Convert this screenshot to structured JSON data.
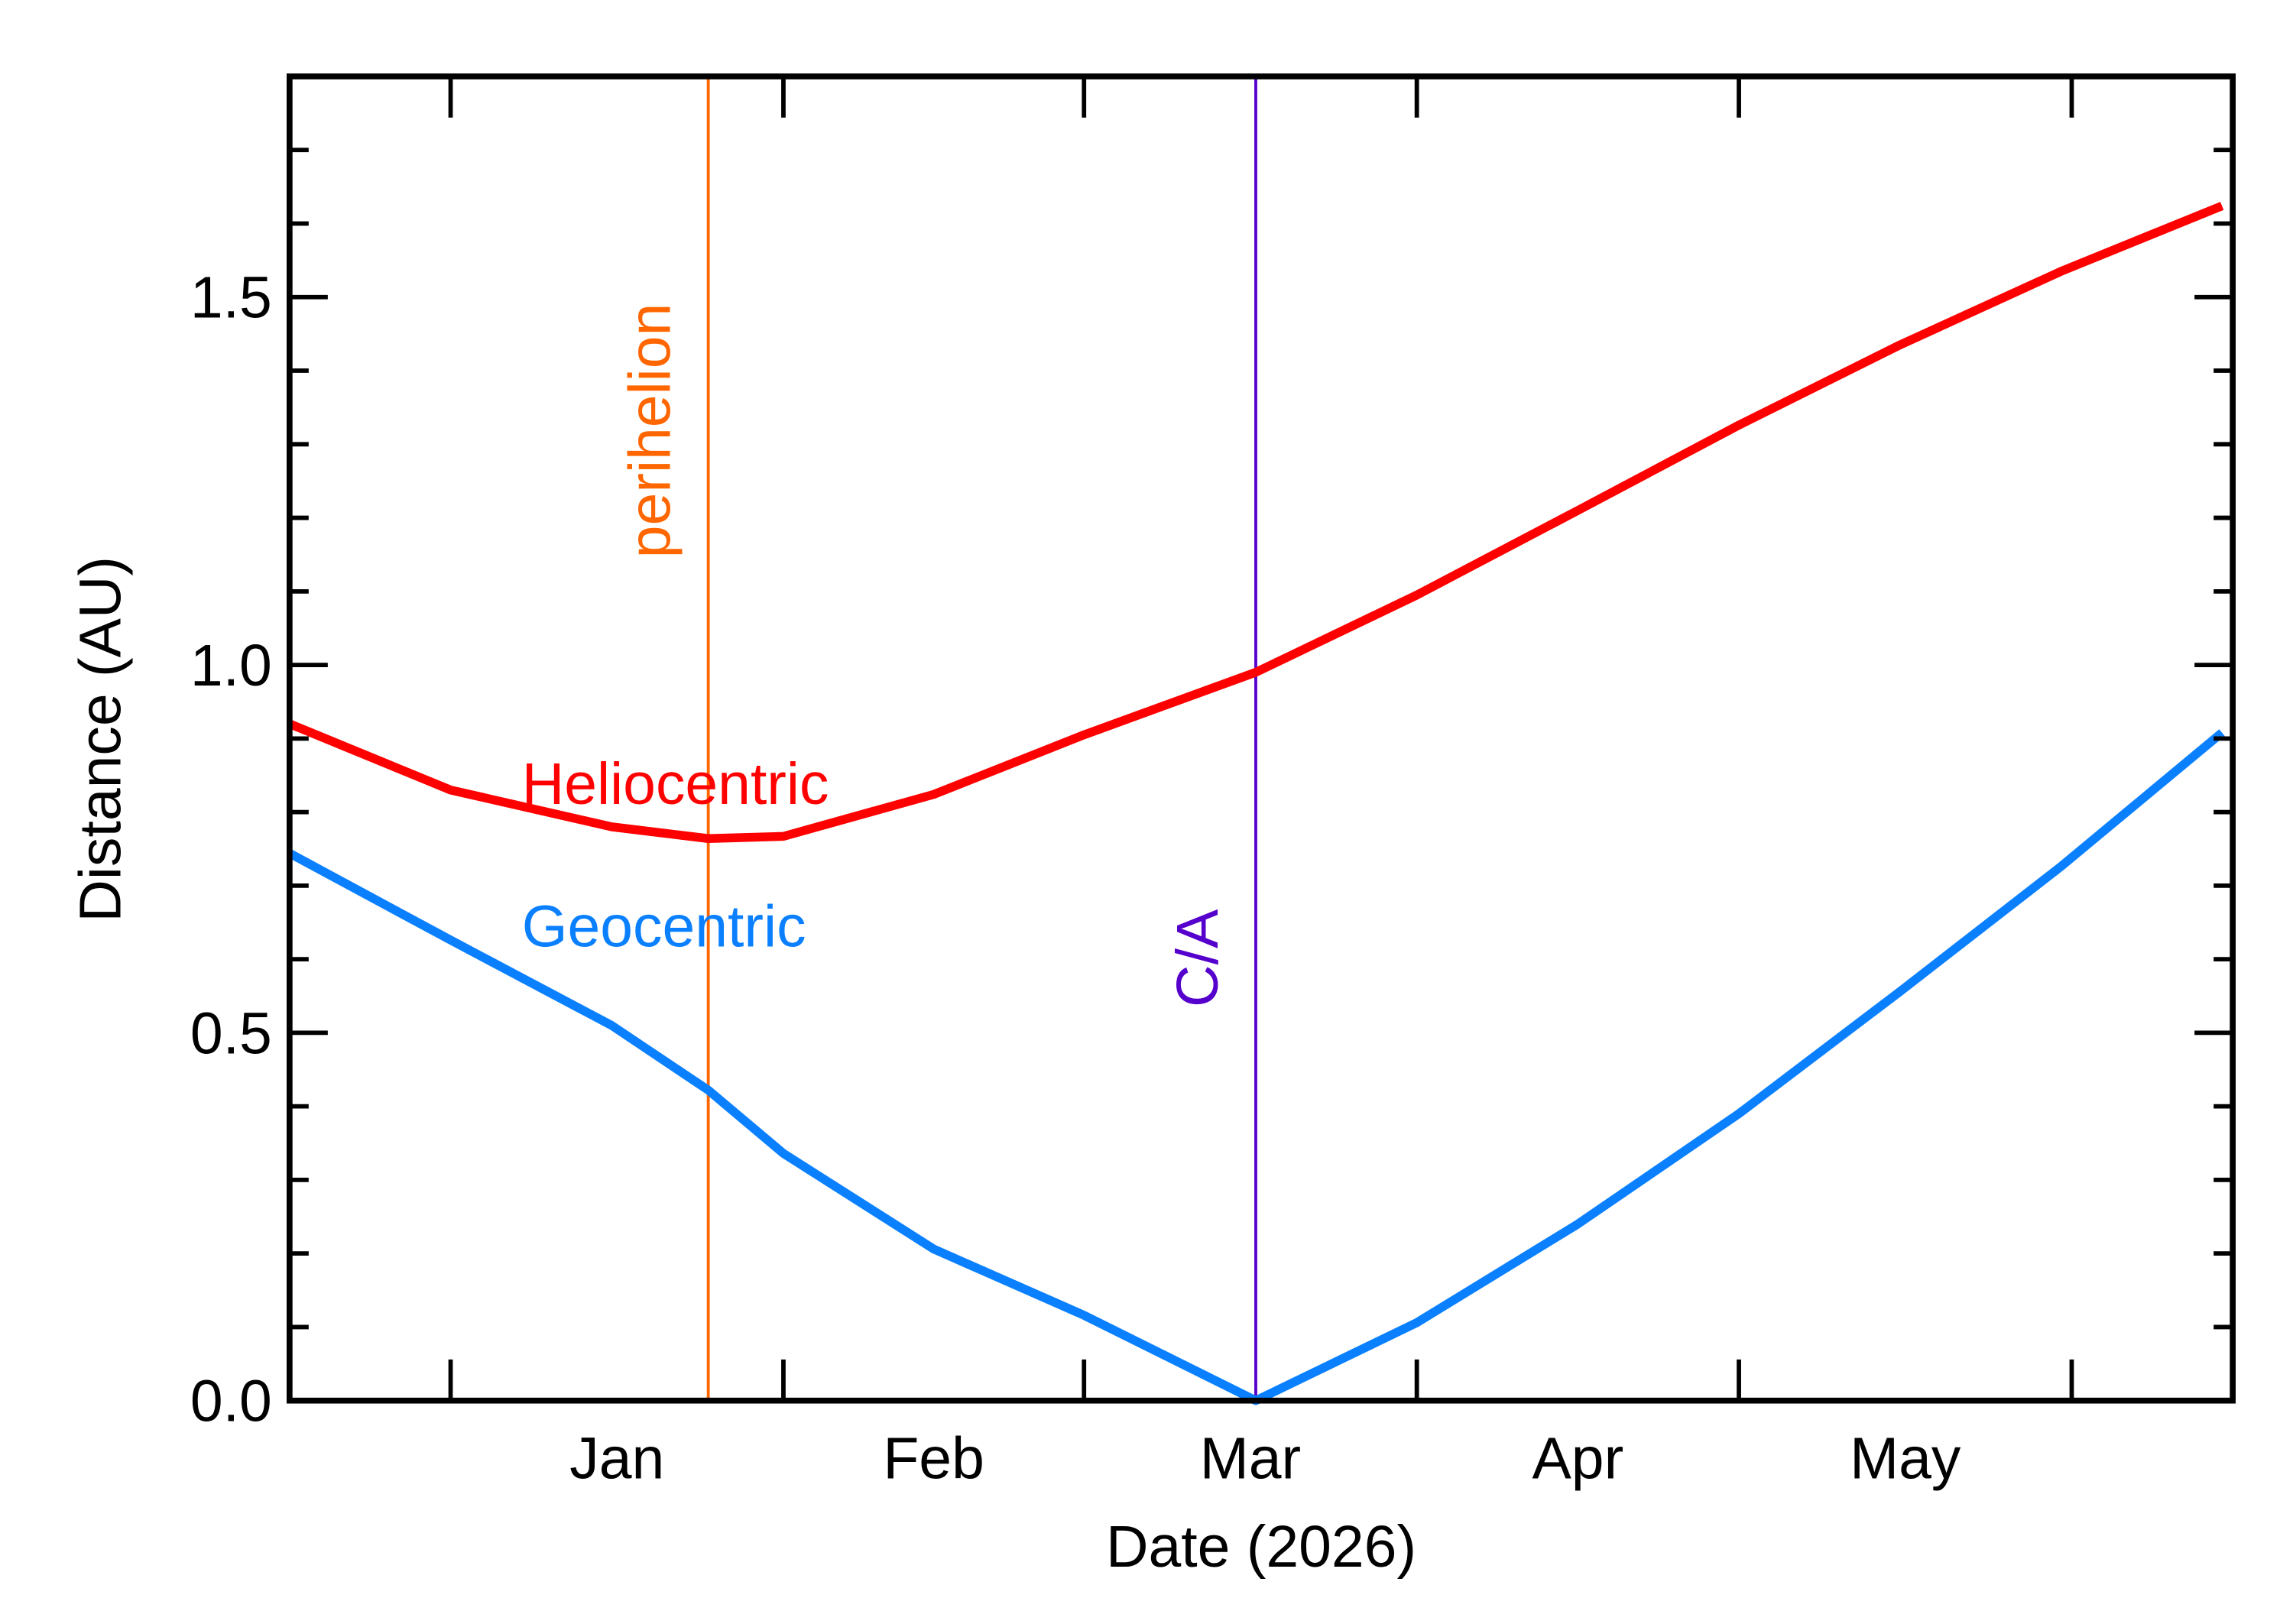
{
  "chart_data": {
    "type": "line",
    "x_label": "Date (2026)",
    "y_label": "Distance (AU)",
    "categories": [
      "Jan",
      "Feb",
      "Mar",
      "Apr",
      "May"
    ],
    "x": [
      -15,
      0,
      15,
      24,
      31,
      45,
      59,
      75,
      90,
      105,
      120,
      135,
      150,
      165
    ],
    "xlim": [
      -15,
      166
    ],
    "xticks": [
      0,
      31,
      59,
      90,
      120,
      151
    ],
    "ylim": [
      0,
      1.8
    ],
    "yticks": [
      {
        "value": 0,
        "label": "0.0"
      },
      {
        "value": 0.5,
        "label": "0.5"
      },
      {
        "value": 1,
        "label": "1.0"
      },
      {
        "value": 1.5,
        "label": "1.5"
      }
    ],
    "yminorticks": [
      0.1,
      0.2,
      0.3,
      0.4,
      0.6,
      0.7,
      0.8,
      0.9,
      1.1,
      1.2,
      1.3,
      1.4,
      1.6,
      1.7
    ],
    "series": [
      {
        "name": "Heliocentric",
        "color": "#ff0000",
        "values": [
          0.92,
          0.83,
          0.78,
          0.764,
          0.767,
          0.824,
          0.905,
          0.99,
          1.095,
          1.21,
          1.326,
          1.435,
          1.535,
          1.624
        ]
      },
      {
        "name": "Geocentric",
        "color": "#0a80ff",
        "values": [
          0.744,
          0.626,
          0.51,
          0.422,
          0.336,
          0.206,
          0.116,
          0.0,
          0.106,
          0.24,
          0.39,
          0.556,
          0.726,
          0.908
        ]
      }
    ],
    "annotations": [
      {
        "text": "perihelion",
        "x": 24,
        "color": "#ff6600"
      },
      {
        "text": "C/A",
        "x": 75,
        "color": "#5500cc"
      }
    ]
  }
}
